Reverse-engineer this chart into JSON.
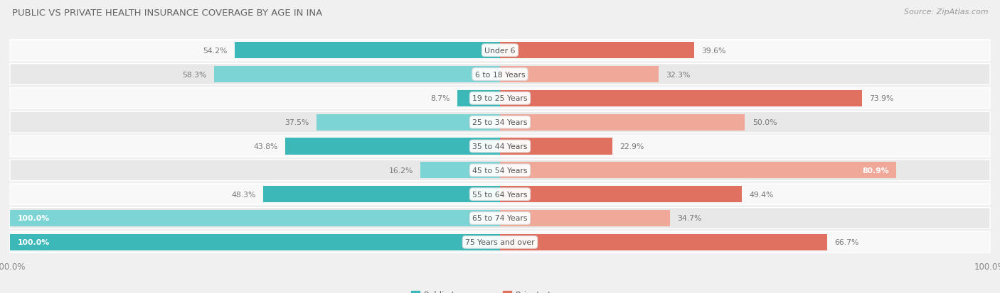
{
  "title": "PUBLIC VS PRIVATE HEALTH INSURANCE COVERAGE BY AGE IN INA",
  "source": "Source: ZipAtlas.com",
  "categories": [
    "Under 6",
    "6 to 18 Years",
    "19 to 25 Years",
    "25 to 34 Years",
    "35 to 44 Years",
    "45 to 54 Years",
    "55 to 64 Years",
    "65 to 74 Years",
    "75 Years and over"
  ],
  "public_values": [
    54.2,
    58.3,
    8.7,
    37.5,
    43.8,
    16.2,
    48.3,
    100.0,
    100.0
  ],
  "private_values": [
    39.6,
    32.3,
    73.9,
    50.0,
    22.9,
    80.9,
    49.4,
    34.7,
    66.7
  ],
  "public_color_dark": "#3db8b8",
  "public_color_light": "#7dd4d4",
  "private_color_dark": "#e07060",
  "private_color_light": "#f0a898",
  "public_label": "Public Insurance",
  "private_label": "Private Insurance",
  "bg_color": "#f0f0f0",
  "row_bg_odd": "#e8e8e8",
  "row_bg_even": "#f8f8f8",
  "label_color_dark": "#777777",
  "label_color_white": "#ffffff",
  "center_label_color": "#555555",
  "max_val": 100.0,
  "white_threshold_pub": 90.0,
  "white_threshold_priv": 75.0,
  "title_color": "#666666",
  "source_color": "#999999"
}
